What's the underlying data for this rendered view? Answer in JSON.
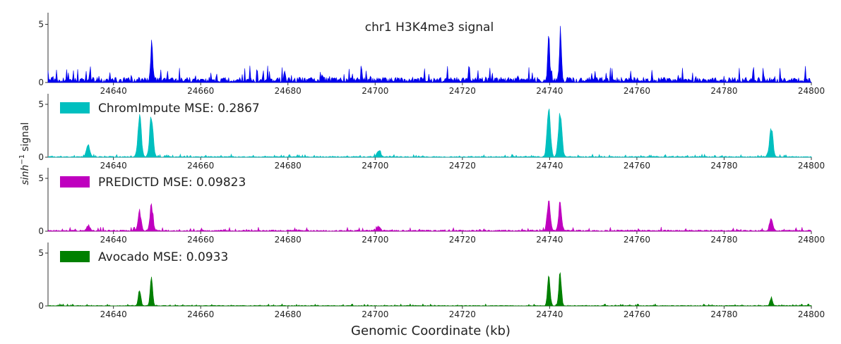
{
  "chart_data": {
    "type": "area",
    "title": "chr1 H3K4me3 signal",
    "xlabel": "Genomic Coordinate (kb)",
    "ylabel": "sinh",
    "ylabel_superscript": "−1",
    "ylabel_suffix": "signal",
    "x_ticks": [
      24640,
      24660,
      24680,
      24700,
      24720,
      24740,
      24760,
      24780,
      24800
    ],
    "y_ticks": [
      0,
      5
    ],
    "xlim": [
      24625,
      24800
    ],
    "ylim": [
      0,
      6
    ],
    "grid": false,
    "legend_placement": "top-left",
    "panels": [
      {
        "legend": "",
        "color": "#0000ee",
        "peaks": [
          [
            24648.8,
            3.5
          ],
          [
            24739.8,
            4.0
          ],
          [
            24742.5,
            3.8
          ]
        ],
        "noise_level": 0.9,
        "peak_width": 0.35,
        "seed": 11
      },
      {
        "legend": "ChromImpute MSE: 0.2867",
        "color": "#00bfbf",
        "peaks": [
          [
            24634.2,
            1.3
          ],
          [
            24646.0,
            4.5
          ],
          [
            24648.7,
            4.5
          ],
          [
            24700.8,
            0.7
          ],
          [
            24739.8,
            5.1
          ],
          [
            24742.4,
            5.1
          ],
          [
            24790.8,
            3.2
          ]
        ],
        "noise_level": 0.18,
        "peak_width": 0.55,
        "seed": 23
      },
      {
        "legend": "PREDICTD MSE: 0.09823",
        "color": "#bf00bf",
        "peaks": [
          [
            24634.2,
            0.6
          ],
          [
            24646.0,
            2.0
          ],
          [
            24648.7,
            2.6
          ],
          [
            24700.8,
            0.5
          ],
          [
            24739.8,
            3.2
          ],
          [
            24742.4,
            2.9
          ],
          [
            24790.8,
            1.2
          ]
        ],
        "noise_level": 0.25,
        "peak_width": 0.5,
        "seed": 37
      },
      {
        "legend": "Avocado MSE: 0.0933",
        "color": "#008000",
        "peaks": [
          [
            24646.0,
            1.7
          ],
          [
            24648.7,
            2.8
          ],
          [
            24739.8,
            3.5
          ],
          [
            24742.4,
            3.9
          ],
          [
            24790.8,
            0.9
          ]
        ],
        "noise_level": 0.12,
        "peak_width": 0.4,
        "seed": 51
      }
    ]
  }
}
